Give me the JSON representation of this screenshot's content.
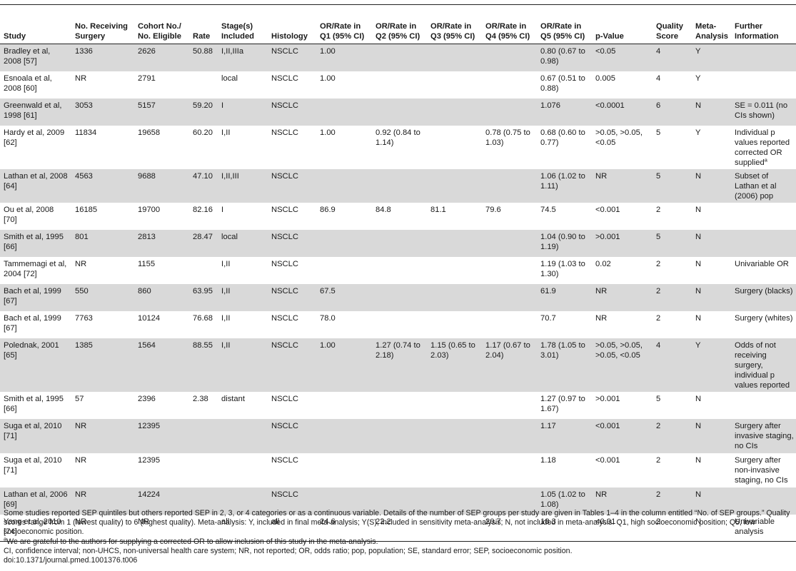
{
  "table": {
    "headers": [
      "Study",
      "No. Receiving Surgery",
      "Cohort No./ No. Eligible",
      "Rate",
      "Stage(s) Included",
      "Histology",
      "OR/Rate in Q1 (95% CI)",
      "OR/Rate in Q2 (95% CI)",
      "OR/Rate in Q3 (95% CI)",
      "OR/Rate in Q4 (95% CI)",
      "OR/Rate in Q5 (95% CI)",
      "p-Value",
      "Quality Score",
      "Meta-Analysis",
      "Further Information"
    ],
    "rows": [
      [
        "Bradley et al, 2008 [57]",
        "1336",
        "2626",
        "50.88",
        "I,II,IIIa",
        "NSCLC",
        "1.00",
        "",
        "",
        "",
        "0.80 (0.67 to 0.98)",
        "<0.05",
        "4",
        "Y",
        ""
      ],
      [
        "Esnoala et al, 2008 [60]",
        "NR",
        "2791",
        "",
        "local",
        "NSCLC",
        "1.00",
        "",
        "",
        "",
        "0.67 (0.51 to 0.88)",
        "0.005",
        "4",
        "Y",
        ""
      ],
      [
        "Greenwald et al, 1998 [61]",
        "3053",
        "5157",
        "59.20",
        "I",
        "NSCLC",
        "",
        "",
        "",
        "",
        "1.076",
        "<0.0001",
        "6",
        "N",
        "SE = 0.011 (no CIs shown)"
      ],
      [
        "Hardy et al, 2009 [62]",
        "11834",
        "19658",
        "60.20",
        "I,II",
        "NSCLC",
        "1.00",
        "0.92 (0.84 to 1.14)",
        "",
        "0.78 (0.75 to 1.03)",
        "0.68 (0.60 to 0.77)",
        ">0.05, >0.05, <0.05",
        "5",
        "Y",
        "Individual p values reported corrected OR supplied"
      ],
      [
        "Lathan et al, 2008 [64]",
        "4563",
        "9688",
        "47.10",
        "I,II,III",
        "NSCLC",
        "",
        "",
        "",
        "",
        "1.06 (1.02 to 1.11)",
        "NR",
        "5",
        "N",
        "Subset of Lathan et al (2006) pop"
      ],
      [
        "Ou et al, 2008 [70]",
        "16185",
        "19700",
        "82.16",
        "I",
        "NSCLC",
        "86.9",
        "84.8",
        "81.1",
        "79.6",
        "74.5",
        "<0.001",
        "2",
        "N",
        ""
      ],
      [
        "Smith et al, 1995 [66]",
        "801",
        "2813",
        "28.47",
        "local",
        "NSCLC",
        "",
        "",
        "",
        "",
        "1.04 (0.90 to 1.19)",
        ">0.001",
        "5",
        "N",
        ""
      ],
      [
        "Tammemagi et al, 2004 [72]",
        "NR",
        "1155",
        "",
        "I,II",
        "NSCLC",
        "",
        "",
        "",
        "",
        "1.19 (1.03 to 1.30)",
        "0.02",
        "2",
        "N",
        "Univariable OR"
      ],
      [
        "Bach et al, 1999 [67]",
        "550",
        "860",
        "63.95",
        "I,II",
        "NSCLC",
        "67.5",
        "",
        "",
        "",
        "61.9",
        "NR",
        "2",
        "N",
        "Surgery (blacks)"
      ],
      [
        "Bach et al, 1999 [67]",
        "7763",
        "10124",
        "76.68",
        "I,II",
        "NSCLC",
        "78.0",
        "",
        "",
        "",
        "70.7",
        "NR",
        "2",
        "N",
        "Surgery (whites)"
      ],
      [
        "Polednak, 2001 [65]",
        "1385",
        "1564",
        "88.55",
        "I,II",
        "NSCLC",
        "1.00",
        "1.27 (0.74 to 2.18)",
        "1.15 (0.65 to 2.03)",
        "1.17 (0.67 to 2.04)",
        "1.78 (1.05 to 3.01)",
        ">0.05, >0.05, >0.05, <0.05",
        "4",
        "Y",
        "Odds of not receiving surgery, individual p values reported"
      ],
      [
        "Smith et al, 1995 [66]",
        "57",
        "2396",
        "2.38",
        "distant",
        "NSCLC",
        "",
        "",
        "",
        "",
        "1.27 (0.97 to 1.67)",
        ">0.001",
        "5",
        "N",
        ""
      ],
      [
        "Suga et al, 2010 [71]",
        "NR",
        "12395",
        "",
        "",
        "NSCLC",
        "",
        "",
        "",
        "",
        "1.17",
        "<0.001",
        "2",
        "N",
        "Surgery after invasive staging, no CIs"
      ],
      [
        "Suga et al, 2010 [71]",
        "NR",
        "12395",
        "",
        "",
        "NSCLC",
        "",
        "",
        "",
        "",
        "1.18",
        "<0.001",
        "2",
        "N",
        "Surgery after non-invasive staging, no CIs"
      ],
      [
        "Lathan et al, 2006 [69]",
        "NR",
        "14224",
        "",
        "",
        "NSCLC",
        "",
        "",
        "",
        "",
        "1.05 (1.02 to 1.08)",
        "NR",
        "2",
        "N",
        ""
      ],
      [
        "Yang et al, 2010 [74]",
        "NR",
        "NR",
        "",
        "all",
        "all",
        "24.6",
        "22.2",
        "",
        "20.7",
        "18.3",
        "<0.01",
        "2",
        "N",
        "Univariable analysis"
      ]
    ],
    "hardy_superscript": "a"
  },
  "footnotes": {
    "note1": "Some studies reported SEP quintiles but others reported SEP in 2, 3, or 4 categories or as a continuous variable. Details of the number of SEP groups per study are given in Tables 1–4 in the column entitled “No. of SEP groups.” Quality scores range from 1 (lowest quality) to 6 (highest quality). Meta-analysis: Y, included in final meta-analysis; Y(S), included in sensitivity meta-analysis; N, not included in meta-analysis. Q1, high socioeconomic position; Q5, low socioeconomic position.",
    "note_a_marker": "a",
    "note_a": "We are grateful to the authors for supplying a corrected OR to allow inclusion of this study in the meta-analysis.",
    "abbreviations": "CI, confidence interval; non-UHCS, non-universal health care system; NR, not reported; OR, odds ratio; pop, population; SE, standard error; SEP, socioeconomic position.",
    "doi": "doi:10.1371/journal.pmed.1001376.t006"
  }
}
